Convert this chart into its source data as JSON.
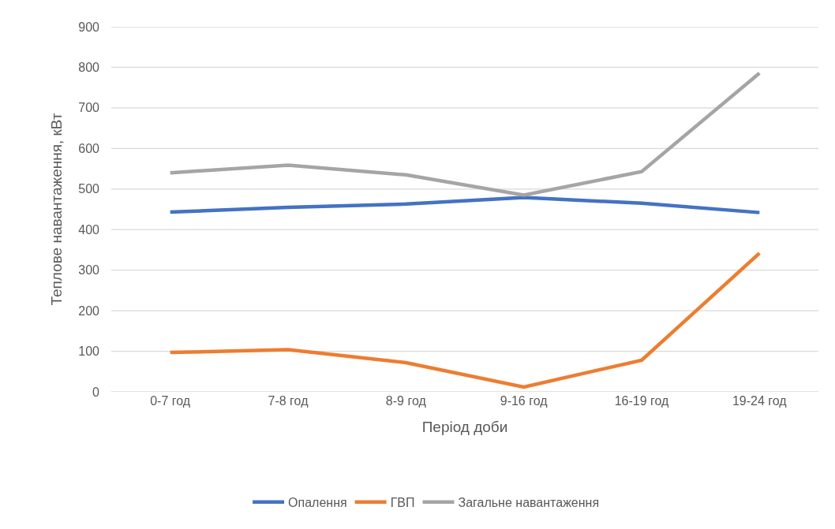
{
  "chart_data": {
    "type": "line",
    "xlabel": "Період доби",
    "ylabel": "Теплове навантаження, кВт",
    "categories": [
      "0-7 год",
      "7-8 год",
      "8-9 год",
      "9-16 год",
      "16-19 год",
      "19-24 год"
    ],
    "series": [
      {
        "name": "Опалення",
        "color": "#4472c4",
        "values": [
          443,
          455,
          463,
          479,
          465,
          442
        ]
      },
      {
        "name": "ГВП",
        "color": "#ed7d31",
        "values": [
          97,
          104,
          72,
          12,
          78,
          342
        ]
      },
      {
        "name": "Загальне навантаження",
        "color": "#a5a5a5",
        "values": [
          540,
          559,
          535,
          485,
          543,
          786
        ]
      }
    ],
    "ylim": [
      0,
      900
    ],
    "yticks": [
      0,
      100,
      200,
      300,
      400,
      500,
      600,
      700,
      800,
      900
    ],
    "grid": "y",
    "legend": "bottom",
    "line_style": "solid"
  }
}
